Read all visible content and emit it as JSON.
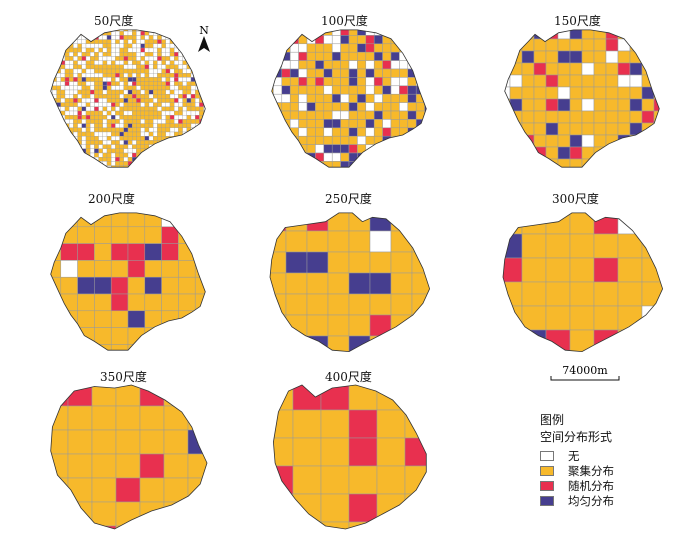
{
  "panels": [
    {
      "title": "50尺度",
      "n": 40,
      "shape": "A",
      "rand": 0.05,
      "unif": 0.03,
      "none": 0.45
    },
    {
      "title": "100尺度",
      "n": 20,
      "shape": "A",
      "rand": 0.06,
      "unif": 0.16,
      "none": 0.25
    },
    {
      "title": "150尺度",
      "n": 14,
      "shape": "A",
      "rand": 0.1,
      "unif": 0.12,
      "none": 0.12
    },
    {
      "title": "200尺度",
      "n": 10,
      "shape": "A",
      "rand": 0.18,
      "unif": 0.08,
      "none": 0.08
    },
    {
      "title": "250尺度",
      "n": 8,
      "shape": "B",
      "rand": 0.05,
      "unif": 0.07,
      "none": 0.04
    },
    {
      "title": "300尺度",
      "n": 7,
      "shape": "B",
      "rand": 0.1,
      "unif": 0.08,
      "none": 0.03
    },
    {
      "title": "350尺度",
      "n": 7,
      "shape": "C",
      "rand": 0.1,
      "unif": 0.05,
      "none": 0.02
    },
    {
      "title": "400尺度",
      "n": 6,
      "shape": "D",
      "rand": 0.2,
      "unif": 0.0,
      "none": 0.05
    }
  ],
  "north_label": "N",
  "scale_label": "74000m",
  "legend": {
    "title": "图例",
    "subtitle": "空间分布形式",
    "items": [
      {
        "label": "无",
        "color": "#ffffff"
      },
      {
        "label": "聚集分布",
        "color": "#f7b92b"
      },
      {
        "label": "随机分布",
        "color": "#e8304f"
      },
      {
        "label": "均匀分布",
        "color": "#463e8f"
      }
    ]
  }
}
